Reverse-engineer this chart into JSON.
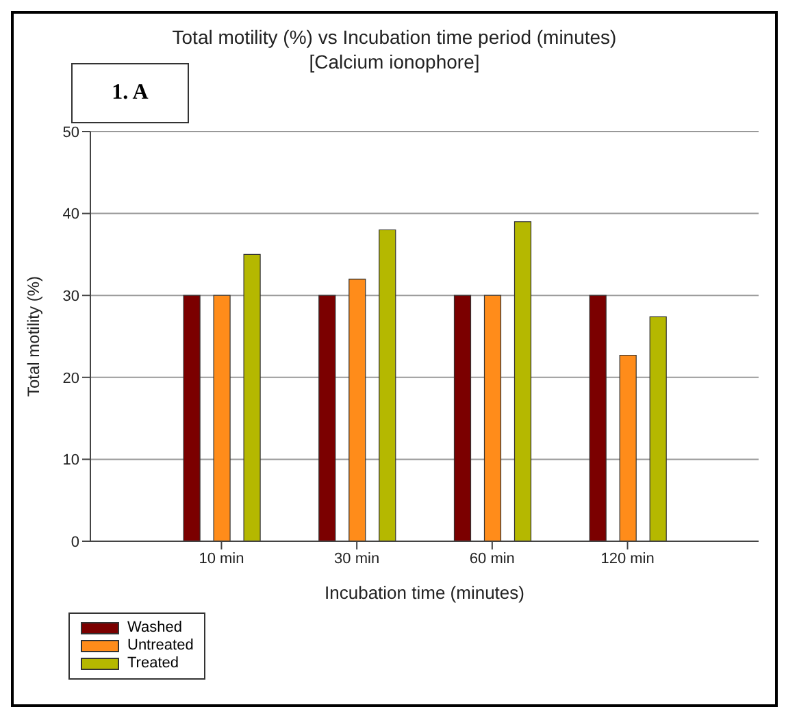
{
  "chart_data": {
    "type": "bar",
    "title": "Total motility (%) vs Incubation time period (minutes)",
    "subtitle": "[Calcium ionophore]",
    "xlabel": "Incubation time (minutes)",
    "ylabel": "Total motility (%)",
    "annotations": [
      "1. A"
    ],
    "categories": [
      "10 min",
      "30 min",
      "60 min",
      "120 min"
    ],
    "series": [
      {
        "name": "Washed",
        "color": "#7b0000",
        "values": [
          30,
          30,
          30,
          30
        ]
      },
      {
        "name": "Untreated",
        "color": "#ff8c1a",
        "values": [
          30,
          32,
          30,
          22.7
        ]
      },
      {
        "name": "Treated",
        "color": "#b5b800",
        "values": [
          35,
          38,
          39,
          27.4
        ]
      }
    ],
    "ylim": [
      0,
      50
    ],
    "yticks": [
      0,
      10,
      20,
      30,
      40,
      50
    ],
    "grid": "y",
    "legend": "bottom left"
  }
}
